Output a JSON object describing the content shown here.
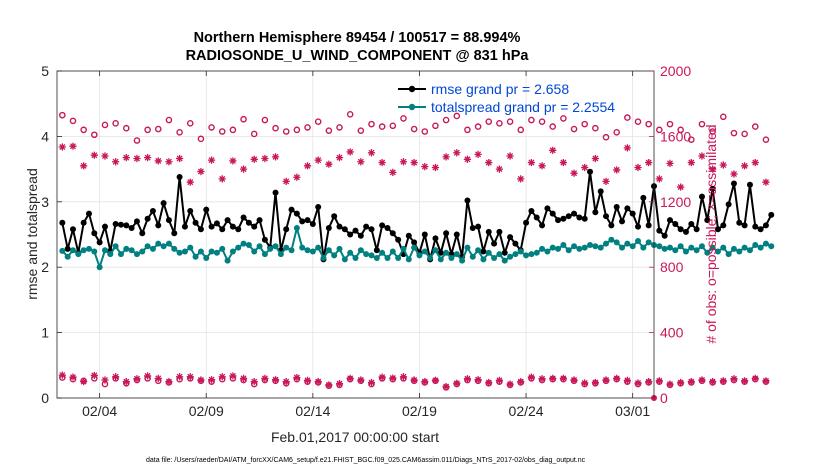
{
  "chart_data": {
    "type": "line",
    "title_line1": "Northern Hemisphere 89454 / 100517 = 88.994%",
    "title_line2": "RADIOSONDE_U_WIND_COMPONENT @ 831 hPa",
    "xlabel": "Feb.01,2017 00:00:00 start",
    "ylabel": "rmse and totalspread",
    "ylabel_right": "# of obs: o=possible; ×=assimilated",
    "footnote": "data file: /Users/raeder/DAI/ATM_forcXX/CAM6_setup/f.e21.FHIST_BGC.f09_025.CAM6assim.011/Diags_NTrS_2017-02/obs_diag_output.nc",
    "xlim": [
      1,
      29
    ],
    "ylim": [
      0,
      5
    ],
    "ylim_right": [
      0,
      2000
    ],
    "x_ticks": [
      3,
      8,
      13,
      18,
      23,
      28
    ],
    "x_tick_labels": [
      "02/04",
      "02/09",
      "02/14",
      "02/19",
      "02/24",
      "03/01"
    ],
    "y_ticks": [
      0,
      1,
      2,
      3,
      4,
      5
    ],
    "y_ticks_right": [
      0,
      400,
      800,
      1200,
      1600,
      2000
    ],
    "grid": true,
    "legend_position": "top-right",
    "x_start": 1.25,
    "x_step": 0.25,
    "series": [
      {
        "name": "rmse grand pr = 2.658",
        "axis": "left",
        "color": "#000000",
        "marker": "filled-circle",
        "values": [
          2.68,
          2.28,
          2.58,
          2.22,
          2.68,
          2.82,
          2.52,
          2.38,
          2.62,
          2.25,
          2.66,
          2.65,
          2.64,
          2.6,
          2.7,
          2.52,
          2.74,
          2.86,
          2.64,
          2.98,
          2.72,
          2.52,
          3.38,
          2.62,
          2.86,
          2.68,
          2.58,
          2.88,
          2.62,
          2.67,
          2.58,
          2.72,
          2.62,
          2.58,
          2.76,
          2.68,
          2.62,
          2.72,
          2.42,
          2.3,
          3.14,
          2.26,
          2.58,
          2.88,
          2.82,
          2.7,
          2.72,
          2.66,
          2.92,
          2.12,
          2.6,
          2.78,
          2.62,
          2.58,
          2.5,
          2.56,
          2.48,
          2.62,
          2.58,
          2.26,
          2.64,
          2.6,
          2.52,
          2.42,
          2.2,
          2.48,
          2.38,
          2.22,
          2.5,
          2.12,
          2.44,
          2.22,
          2.52,
          2.2,
          2.5,
          2.16,
          3.02,
          2.6,
          2.62,
          2.24,
          2.54,
          2.36,
          2.54,
          2.22,
          2.46,
          2.36,
          2.26,
          2.68,
          2.86,
          2.76,
          2.64,
          2.9,
          2.82,
          2.72,
          2.74,
          2.78,
          2.82,
          2.76,
          2.74,
          3.46,
          2.84,
          3.16,
          2.78,
          2.64,
          2.92,
          2.7,
          2.9,
          2.82,
          2.62,
          3.06,
          2.64,
          3.24,
          2.56,
          2.48,
          2.72,
          2.66,
          2.58,
          2.54,
          2.66,
          2.58,
          3.08,
          2.72,
          3.2,
          2.58,
          2.64,
          2.96,
          3.28,
          2.68,
          2.64,
          3.26,
          2.62,
          2.58,
          2.64,
          2.8
        ]
      },
      {
        "name": "totalspread grand pr = 2.2554",
        "axis": "left",
        "color": "#008080",
        "marker": "filled-circle",
        "values": [
          2.25,
          2.16,
          2.26,
          2.2,
          2.26,
          2.28,
          2.24,
          2.0,
          2.26,
          2.2,
          2.32,
          2.2,
          2.28,
          2.26,
          2.2,
          2.24,
          2.32,
          2.28,
          2.36,
          2.32,
          2.36,
          2.28,
          2.22,
          2.24,
          2.3,
          2.16,
          2.24,
          2.14,
          2.24,
          2.22,
          2.28,
          2.1,
          2.24,
          2.3,
          2.36,
          2.34,
          2.24,
          2.32,
          2.2,
          2.28,
          2.32,
          2.2,
          2.3,
          2.26,
          2.6,
          2.3,
          2.26,
          2.24,
          2.3,
          2.14,
          2.26,
          2.18,
          2.28,
          2.12,
          2.22,
          2.14,
          2.26,
          2.2,
          2.18,
          2.14,
          2.22,
          2.14,
          2.24,
          2.14,
          2.28,
          2.12,
          2.3,
          2.18,
          2.24,
          2.14,
          2.26,
          2.12,
          2.22,
          2.14,
          2.2,
          2.1,
          2.3,
          2.16,
          2.26,
          2.12,
          2.22,
          2.14,
          2.2,
          2.1,
          2.16,
          2.2,
          2.24,
          2.18,
          2.2,
          2.22,
          2.28,
          2.24,
          2.3,
          2.28,
          2.34,
          2.26,
          2.32,
          2.28,
          2.3,
          2.34,
          2.32,
          2.3,
          2.36,
          2.42,
          2.38,
          2.3,
          2.36,
          2.32,
          2.4,
          2.3,
          2.38,
          2.34,
          2.32,
          2.28,
          2.3,
          2.26,
          2.32,
          2.24,
          2.3,
          2.26,
          2.32,
          2.22,
          2.3,
          2.24,
          2.3,
          2.2,
          2.28,
          2.24,
          2.3,
          2.26,
          2.34,
          2.3,
          2.36,
          2.32
        ]
      },
      {
        "name": "possible",
        "axis": "right",
        "color": "#c8175a",
        "marker": "open-circle",
        "every": 2,
        "values": [
          1730,
          1695,
          1640,
          1610,
          1670,
          1680,
          1650,
          1575,
          1640,
          1645,
          1700,
          1625,
          1680,
          1585,
          1655,
          1630,
          1640,
          1705,
          1615,
          1700,
          1650,
          1630,
          1640,
          1655,
          1690,
          1635,
          1655,
          1735,
          1635,
          1675,
          1660,
          1665,
          1710,
          1645,
          1630,
          1665,
          1700,
          1725,
          1640,
          1660,
          1690,
          1680,
          1690,
          1640,
          1700,
          1690,
          1660,
          1710,
          1645,
          1675,
          1650,
          1595,
          1625,
          1715,
          1690,
          1675,
          1640,
          1675,
          1640,
          1580,
          1675,
          1630,
          1720,
          1620,
          1615,
          1660,
          1580
        ]
      },
      {
        "name": "assimilated",
        "axis": "right",
        "color": "#c8175a",
        "marker": "asterisk",
        "every": 2,
        "values": [
          1535,
          1540,
          1420,
          1485,
          1480,
          1445,
          1470,
          1465,
          1470,
          1450,
          1445,
          1465,
          1320,
          1385,
          1455,
          1340,
          1450,
          1400,
          1460,
          1465,
          1475,
          1325,
          1350,
          1420,
          1455,
          1430,
          1470,
          1505,
          1445,
          1500,
          1440,
          1380,
          1445,
          1440,
          1415,
          1410,
          1475,
          1500,
          1460,
          1490,
          1440,
          1400,
          1480,
          1340,
          1440,
          1420,
          1515,
          1440,
          1375,
          1410,
          1465,
          1325,
          1395,
          1530,
          1410,
          1440,
          1340,
          1435,
          1290,
          1440,
          1480,
          1400,
          1425,
          1370,
          1420,
          1440,
          1320
        ]
      },
      {
        "name": "possible-low",
        "axis": "right",
        "color": "#c8175a",
        "marker": "open-circle",
        "every": 2,
        "values": [
          125,
          115,
          105,
          120,
          85,
          120,
          90,
          110,
          120,
          105,
          95,
          115,
          120,
          105,
          100,
          115,
          120,
          110,
          85,
          110,
          105,
          90,
          115,
          100,
          95,
          75,
          80,
          115,
          105,
          85,
          120,
          115,
          120,
          105,
          95,
          105,
          65,
          85,
          110,
          105,
          90,
          100,
          80,
          95,
          120,
          110,
          115,
          115,
          105,
          85,
          90,
          105,
          115,
          100,
          85,
          95,
          100,
          80,
          90,
          95,
          105,
          95,
          100,
          110,
          100,
          115,
          100
        ]
      },
      {
        "name": "assimilated-low",
        "axis": "right",
        "color": "#c8175a",
        "marker": "asterisk",
        "every": 2,
        "values": [
          140,
          128,
          100,
          138,
          110,
          130,
          100,
          118,
          135,
          120,
          100,
          130,
          130,
          110,
          112,
          130,
          135,
          120,
          100,
          120,
          112,
          100,
          125,
          108,
          100,
          80,
          88,
          120,
          110,
          95,
          128,
          122,
          130,
          110,
          100,
          108,
          70,
          90,
          118,
          112,
          95,
          108,
          85,
          100,
          128,
          118,
          120,
          120,
          110,
          92,
          95,
          110,
          120,
          108,
          92,
          100,
          105,
          85,
          95,
          100,
          110,
          100,
          105,
          118,
          105,
          120,
          105
        ]
      }
    ]
  }
}
